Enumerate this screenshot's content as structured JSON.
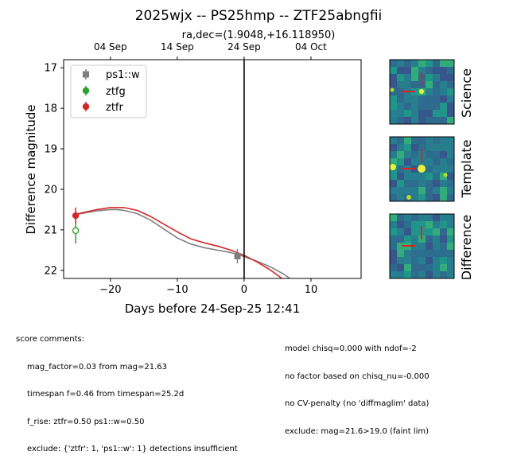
{
  "chart_data": {
    "type": "scatter",
    "title": "2025wjx -- PS25hmp -- ZTF25abngfii",
    "subtitle": "ra,dec=(1.9048,+16.118950)",
    "xlabel": "Days before 24-Sep-25 12:41",
    "ylabel": "Difference magnitude",
    "xlim": [
      -27,
      17.5
    ],
    "ylim": [
      22.2,
      16.8
    ],
    "y_inverted": true,
    "x_ticks": [
      -20,
      -10,
      0,
      10
    ],
    "x_tick_labels": [
      "−20",
      "−10",
      "0",
      "10"
    ],
    "y_ticks": [
      17,
      18,
      19,
      20,
      21,
      22
    ],
    "y_tick_labels": [
      "17",
      "18",
      "19",
      "20",
      "21",
      "22"
    ],
    "top_axis_ticks": [
      -20,
      -10,
      0,
      10
    ],
    "top_axis_labels": [
      "04 Sep",
      "14 Sep",
      "24 Sep",
      "04 Oct"
    ],
    "vertical_line_x": 0,
    "grid": false,
    "legend_placement": "top-left",
    "legend": [
      "ps1::w",
      "ztfg",
      "ztfr"
    ],
    "series": [
      {
        "name": "ps1::w",
        "color": "#7f7f7f",
        "marker": "square",
        "points": [
          {
            "x": -1.0,
            "y": 21.65,
            "yerr": 0.18
          }
        ]
      },
      {
        "name": "ztfg",
        "color": "#2ca02c",
        "marker": "open-circle",
        "points": [
          {
            "x": -25.2,
            "y": 21.02,
            "yerr": 0.32
          }
        ]
      },
      {
        "name": "ztfr",
        "color": "#d62728",
        "marker": "circle",
        "points": [
          {
            "x": -25.2,
            "y": 20.65,
            "yerr": 0.2
          }
        ]
      }
    ],
    "model_curves": [
      {
        "color": "#7f7f7f",
        "x": [
          -25.2,
          -24,
          -22,
          -20,
          -19,
          -18,
          -16,
          -14,
          -12,
          -10,
          -8,
          -6,
          -4,
          -2,
          0,
          2,
          4,
          6,
          7
        ],
        "y": [
          20.62,
          20.59,
          20.53,
          20.5,
          20.5,
          20.52,
          20.6,
          20.76,
          20.98,
          21.2,
          21.35,
          21.44,
          21.5,
          21.56,
          21.66,
          21.78,
          21.92,
          22.1,
          22.22
        ]
      },
      {
        "color": "#d62728",
        "x": [
          -25.2,
          -24,
          -22,
          -20,
          -18,
          -16,
          -14,
          -12,
          -10,
          -8,
          -6,
          -4,
          -2,
          0,
          2,
          4,
          5.8
        ],
        "y": [
          20.62,
          20.57,
          20.5,
          20.45,
          20.45,
          20.52,
          20.67,
          20.86,
          21.05,
          21.22,
          21.32,
          21.4,
          21.5,
          21.63,
          21.8,
          22.0,
          22.22
        ]
      }
    ]
  },
  "stamps": [
    {
      "label": "Science"
    },
    {
      "label": "Template"
    },
    {
      "label": "Difference"
    }
  ],
  "comments": {
    "header": "score comments:",
    "left": [
      "mag_factor=0.03 from mag=21.63",
      "timespan f=0.46 from timespan=25.2d",
      "f_rise: ztfr=0.50 ps1::w=0.50",
      "exclude: {'ztfr': 1, 'ps1::w': 1} detections insufficient"
    ],
    "right": [
      "model chisq=0.000 with ndof=-2",
      "no factor based on chisq_nu=-0.000",
      "no CV-penalty (no 'diffmaglim' data)",
      "exclude: mag=21.6>19.0 (faint lim)"
    ]
  }
}
